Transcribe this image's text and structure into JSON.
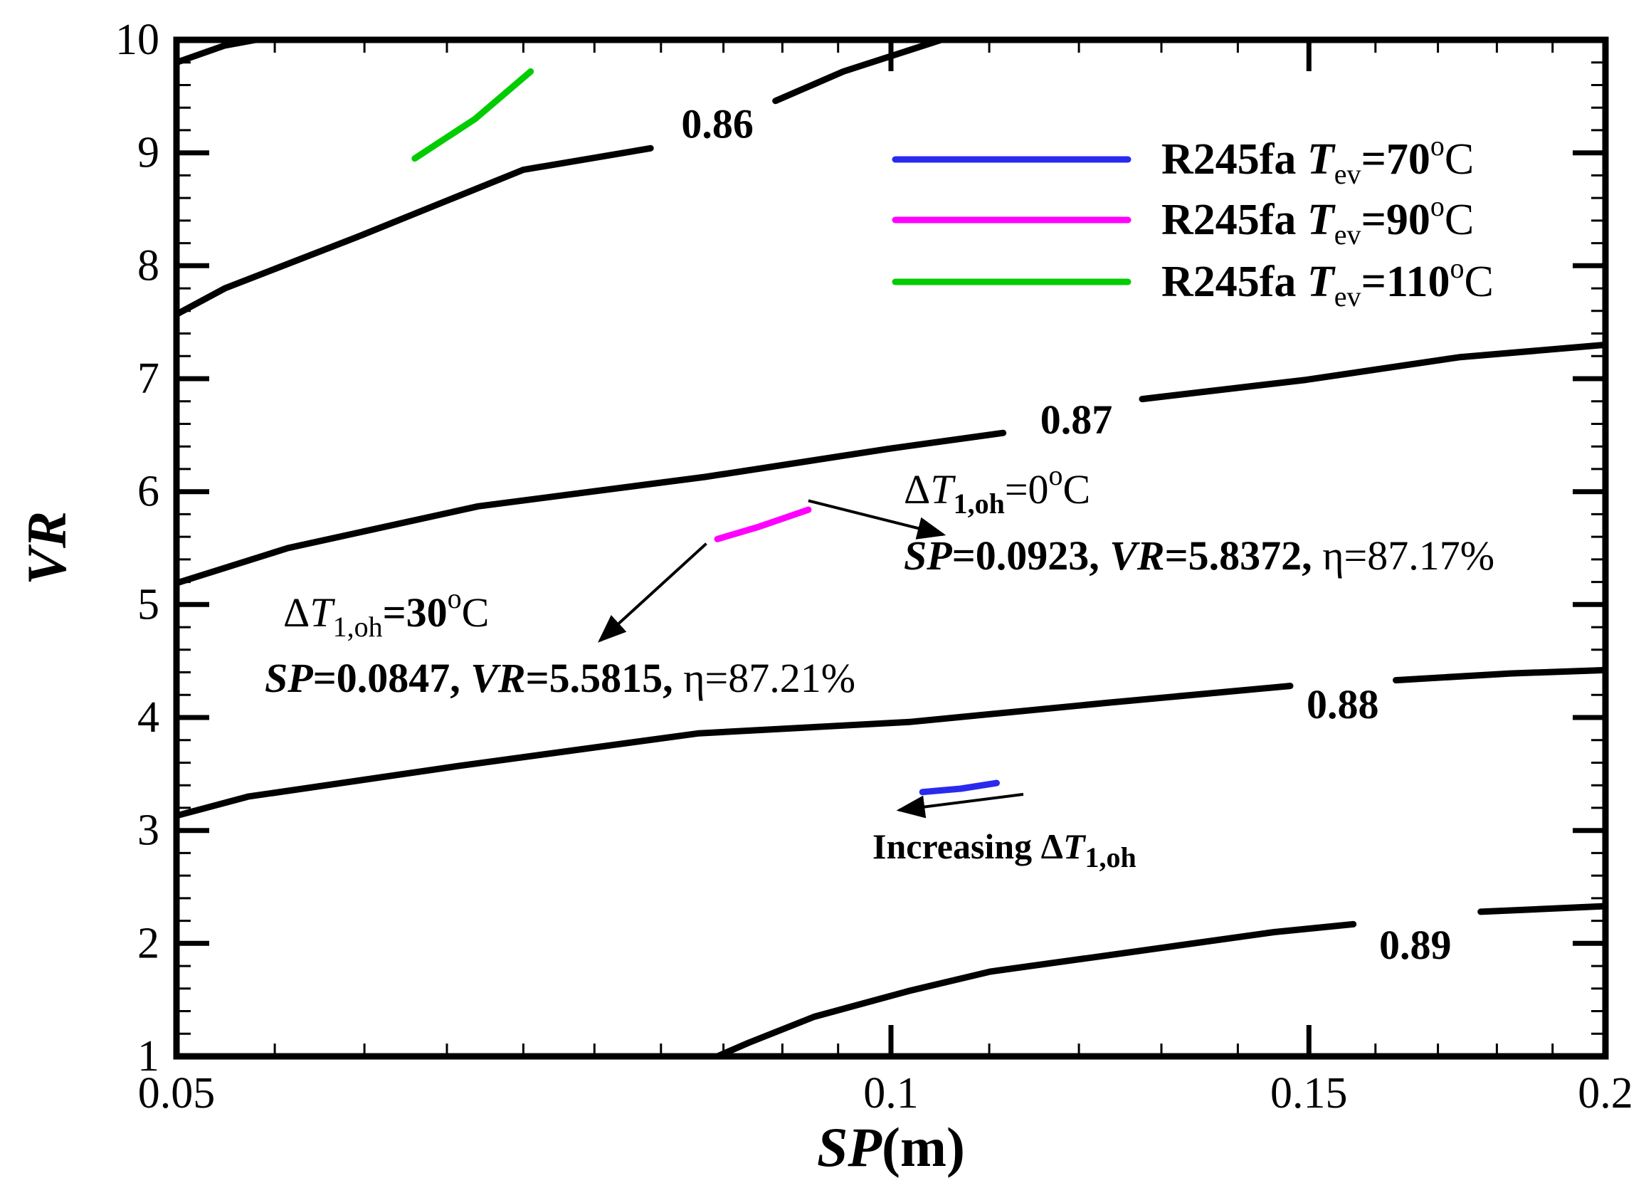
{
  "chart_data": {
    "type": "line",
    "subtype": "contour",
    "xlabel": {
      "main": "SP",
      "unit": "(m)"
    },
    "ylabel": "VR",
    "xscale": "log",
    "xlim": [
      0.05,
      0.2
    ],
    "ylim": [
      1,
      10
    ],
    "x_tick_labels": [
      "0.05",
      "0.1",
      "0.15",
      "0.2"
    ],
    "x_ticks": [
      0.05,
      0.1,
      0.15,
      0.2
    ],
    "y_tick_labels": [
      "1",
      "2",
      "3",
      "4",
      "5",
      "6",
      "7",
      "8",
      "9",
      "10"
    ],
    "y_ticks": [
      1,
      2,
      3,
      4,
      5,
      6,
      7,
      8,
      9,
      10
    ],
    "grid": false,
    "contours": [
      {
        "level": "0.86",
        "color": "#000000",
        "segments": [
          {
            "x": [
              0.05,
              0.0524,
              0.054
            ],
            "y": [
              9.8,
              9.95,
              10.0
            ]
          },
          {
            "x": [
              0.05,
              0.0524,
              0.0595,
              0.07,
              0.0792
            ],
            "y": [
              7.57,
              7.8,
              8.25,
              8.85,
              9.04
            ]
          },
          {
            "x": [
              0.0894,
              0.0955,
              0.105
            ],
            "y": [
              9.46,
              9.72,
              10.0
            ]
          }
        ],
        "label_at": [
          0.0845,
          9.26
        ]
      },
      {
        "level": "0.87",
        "color": "#000000",
        "segments": [
          {
            "x": [
              0.05,
              0.0557,
              0.067,
              0.0835,
              0.0998,
              0.1115
            ],
            "y": [
              5.19,
              5.5,
              5.87,
              6.13,
              6.38,
              6.52
            ]
          },
          {
            "x": [
              0.1276,
              0.1496,
              0.1735,
              0.2
            ],
            "y": [
              6.82,
              6.99,
              7.19,
              7.3
            ]
          }
        ],
        "label_at": [
          0.1197,
          6.64
        ]
      },
      {
        "level": "0.88",
        "color": "#000000",
        "segments": [
          {
            "x": [
              0.05,
              0.0536,
              0.0657,
              0.083,
              0.1018,
              0.1233,
              0.1473
            ],
            "y": [
              3.13,
              3.3,
              3.57,
              3.86,
              3.96,
              4.13,
              4.28
            ]
          },
          {
            "x": [
              0.1632,
              0.1824,
              0.2
            ],
            "y": [
              4.33,
              4.39,
              4.42
            ]
          }
        ],
        "label_at": [
          0.155,
          4.12
        ]
      },
      {
        "level": "0.89",
        "color": "#000000",
        "segments": [
          {
            "x": [
              0.0845,
              0.0871,
              0.0928,
              0.1018,
              0.1101,
              0.122,
              0.145,
              0.1566
            ],
            "y": [
              1.0,
              1.12,
              1.35,
              1.58,
              1.75,
              1.88,
              2.1,
              2.17
            ]
          },
          {
            "x": [
              0.1772,
              0.2
            ],
            "y": [
              2.28,
              2.33
            ]
          }
        ],
        "label_at": [
          0.1663,
          1.99
        ]
      }
    ],
    "series": [
      {
        "name": "R245fa",
        "var": "T",
        "sub": "ev",
        "temp": "=70",
        "deg": "o",
        "unit": "C",
        "color": "#2a2aee",
        "x": [
          0.1031,
          0.107,
          0.1108
        ],
        "y": [
          3.34,
          3.37,
          3.42
        ]
      },
      {
        "name": "R245fa",
        "var": "T",
        "sub": "ev",
        "temp": "=90",
        "deg": "o",
        "unit": "C",
        "color": "#ff00ff",
        "x": [
          0.0845,
          0.088,
          0.0923
        ],
        "y": [
          5.58,
          5.69,
          5.84
        ]
      },
      {
        "name": "R245fa",
        "var": "T",
        "sub": "ev",
        "temp": "=110",
        "deg": "o",
        "unit": "C",
        "color": "#00cc00",
        "x": [
          0.063,
          0.0668,
          0.0705
        ],
        "y": [
          8.95,
          9.3,
          9.72
        ]
      }
    ],
    "annotations": [
      {
        "id": "oh0",
        "delta": "Δ",
        "var": "T",
        "sub": "1,oh",
        "value": "=0",
        "deg": "o",
        "unit": "C",
        "sp_label": "SP",
        "sp_value": "=0.0923, ",
        "vr_label": "VR",
        "vr_value": "=5.8372, ",
        "eta": "η=87.17%",
        "arrow_from": [
          0.0923,
          5.92
        ],
        "arrow_to": [
          0.1052,
          5.62
        ]
      },
      {
        "id": "oh30",
        "delta": "Δ",
        "var": "T",
        "sub": "1,oh",
        "value": "=30",
        "deg": "o",
        "unit": "C",
        "sp_label": "SP",
        "sp_value": "=0.0847, ",
        "vr_label": "VR",
        "vr_value": "=5.5815, ",
        "eta": "η=87.21%",
        "arrow_from": [
          0.0836,
          5.54
        ],
        "arrow_to": [
          0.0754,
          4.68
        ]
      },
      {
        "id": "inc",
        "text": "Increasing Δ",
        "var": "T",
        "sub": "1,oh",
        "arrow_from": [
          0.1137,
          3.32
        ],
        "arrow_to": [
          0.1008,
          3.18
        ]
      }
    ],
    "legend_position": "top-right"
  }
}
